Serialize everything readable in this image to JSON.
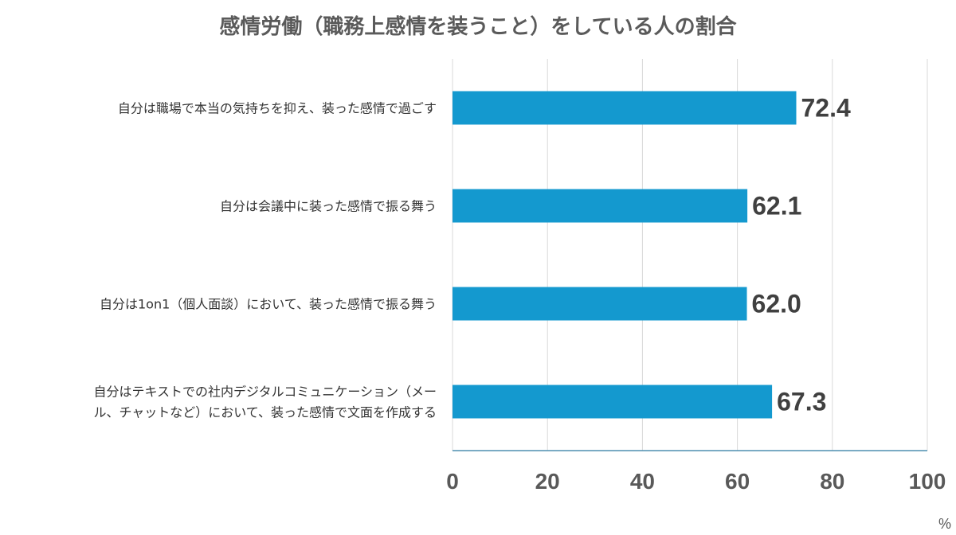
{
  "chart_data": {
    "type": "bar",
    "orientation": "horizontal",
    "title": "感情労働（職務上感情を装うこと）をしている人の割合",
    "categories": [
      [
        "自分は職場で本当の気持ちを抑え、装った感情で過ごす"
      ],
      [
        "自分は会議中に装った感情で振る舞う"
      ],
      [
        "自分は1on1（個人面談）において、装った感情で振る舞う"
      ],
      [
        "自分はテキストでの社内デジタルコミュニケーション（メー",
        "ル、チャットなど）において、装った感情で文面を作成する"
      ]
    ],
    "values": [
      72.4,
      62.1,
      62.0,
      67.3
    ],
    "value_labels": [
      "72.4",
      "62.1",
      "62.0",
      "67.3"
    ],
    "xlim": [
      0,
      100
    ],
    "xticks": [
      0,
      20,
      40,
      60,
      80,
      100
    ],
    "unit": "%",
    "grid": true,
    "bar_color": "#1499cf",
    "grid_color": "#d9d9d9",
    "axis_color": "#4f8fb0"
  }
}
